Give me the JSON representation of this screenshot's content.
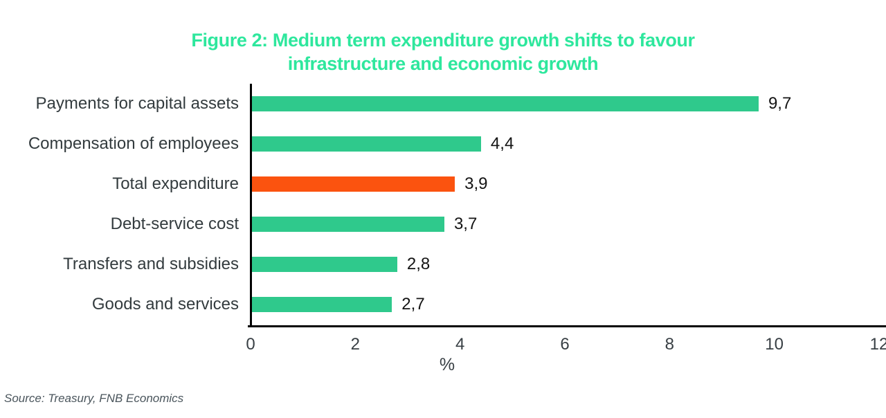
{
  "title": {
    "line1": "Figure 2: Medium term expenditure growth shifts to favour",
    "line2": "infrastructure and economic growth"
  },
  "source": "Source: Treasury, FNB Economics",
  "chart_data": {
    "type": "bar",
    "orientation": "horizontal",
    "title": "Figure 2: Medium term expenditure growth shifts to favour infrastructure and economic growth",
    "xlabel": "%",
    "xlim": [
      0,
      12
    ],
    "x_ticks": [
      "0",
      "2",
      "4",
      "6",
      "8",
      "10",
      "12"
    ],
    "grid": false,
    "legend": false,
    "categories": [
      "Payments for capital assets",
      "Compensation of employees",
      "Total expenditure",
      "Debt-service cost",
      "Transfers and subsidies",
      "Goods and services"
    ],
    "values": [
      9.7,
      4.4,
      3.9,
      3.7,
      2.8,
      2.7
    ],
    "value_labels": [
      "9,7",
      "4,4",
      "3,9",
      "3,7",
      "2,8",
      "2,7"
    ],
    "highlighted_category": "Total expenditure",
    "colors": {
      "bar": "#2fc98c",
      "highlight": "#fb530f",
      "title_text": "#2ee79d",
      "category_text": "#333b3e",
      "value_text": "#141414",
      "tick_text": "#383f44",
      "xlabel_text": "#383f44",
      "source_text": "#4a555c",
      "axis": "#000000"
    }
  }
}
